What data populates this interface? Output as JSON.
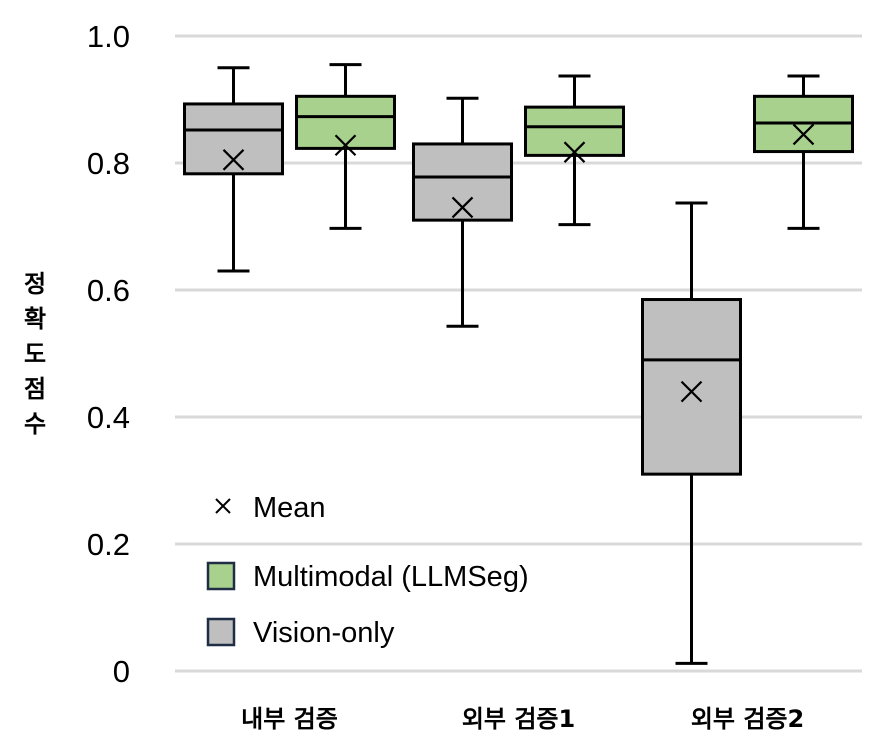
{
  "chart_data": {
    "type": "box",
    "ylabel": "정확도점수",
    "ylim": [
      0,
      1.0
    ],
    "yticks": [
      "0",
      "0.2",
      "0.4",
      "0.6",
      "0.8",
      "1.0"
    ],
    "grid": true,
    "legend_position": "bottom-left",
    "categories": [
      "내부 검증",
      "외부 검증1",
      "외부 검증2"
    ],
    "legend": {
      "mean_label": "Mean",
      "entries": [
        {
          "label": "Multimodal (LLMSeg)",
          "color": "#a9d18e"
        },
        {
          "label": "Vision-only",
          "color": "#bfbfbf"
        }
      ]
    },
    "series": [
      {
        "name": "Vision-only",
        "color": "#bfbfbf",
        "boxes": [
          {
            "min": 0.63,
            "q1": 0.783,
            "median": 0.852,
            "q3": 0.893,
            "max": 0.95,
            "mean": 0.805
          },
          {
            "min": 0.543,
            "q1": 0.71,
            "median": 0.778,
            "q3": 0.83,
            "max": 0.902,
            "mean": 0.73
          },
          {
            "min": 0.012,
            "q1": 0.31,
            "median": 0.49,
            "q3": 0.585,
            "max": 0.737,
            "mean": 0.44
          }
        ]
      },
      {
        "name": "Multimodal (LLMSeg)",
        "color": "#a9d18e",
        "boxes": [
          {
            "min": 0.697,
            "q1": 0.823,
            "median": 0.873,
            "q3": 0.905,
            "max": 0.955,
            "mean": 0.828
          },
          {
            "min": 0.703,
            "q1": 0.812,
            "median": 0.857,
            "q3": 0.888,
            "max": 0.937,
            "mean": 0.817
          },
          {
            "min": 0.697,
            "q1": 0.818,
            "median": 0.863,
            "q3": 0.905,
            "max": 0.937,
            "mean": 0.845
          }
        ]
      }
    ]
  }
}
